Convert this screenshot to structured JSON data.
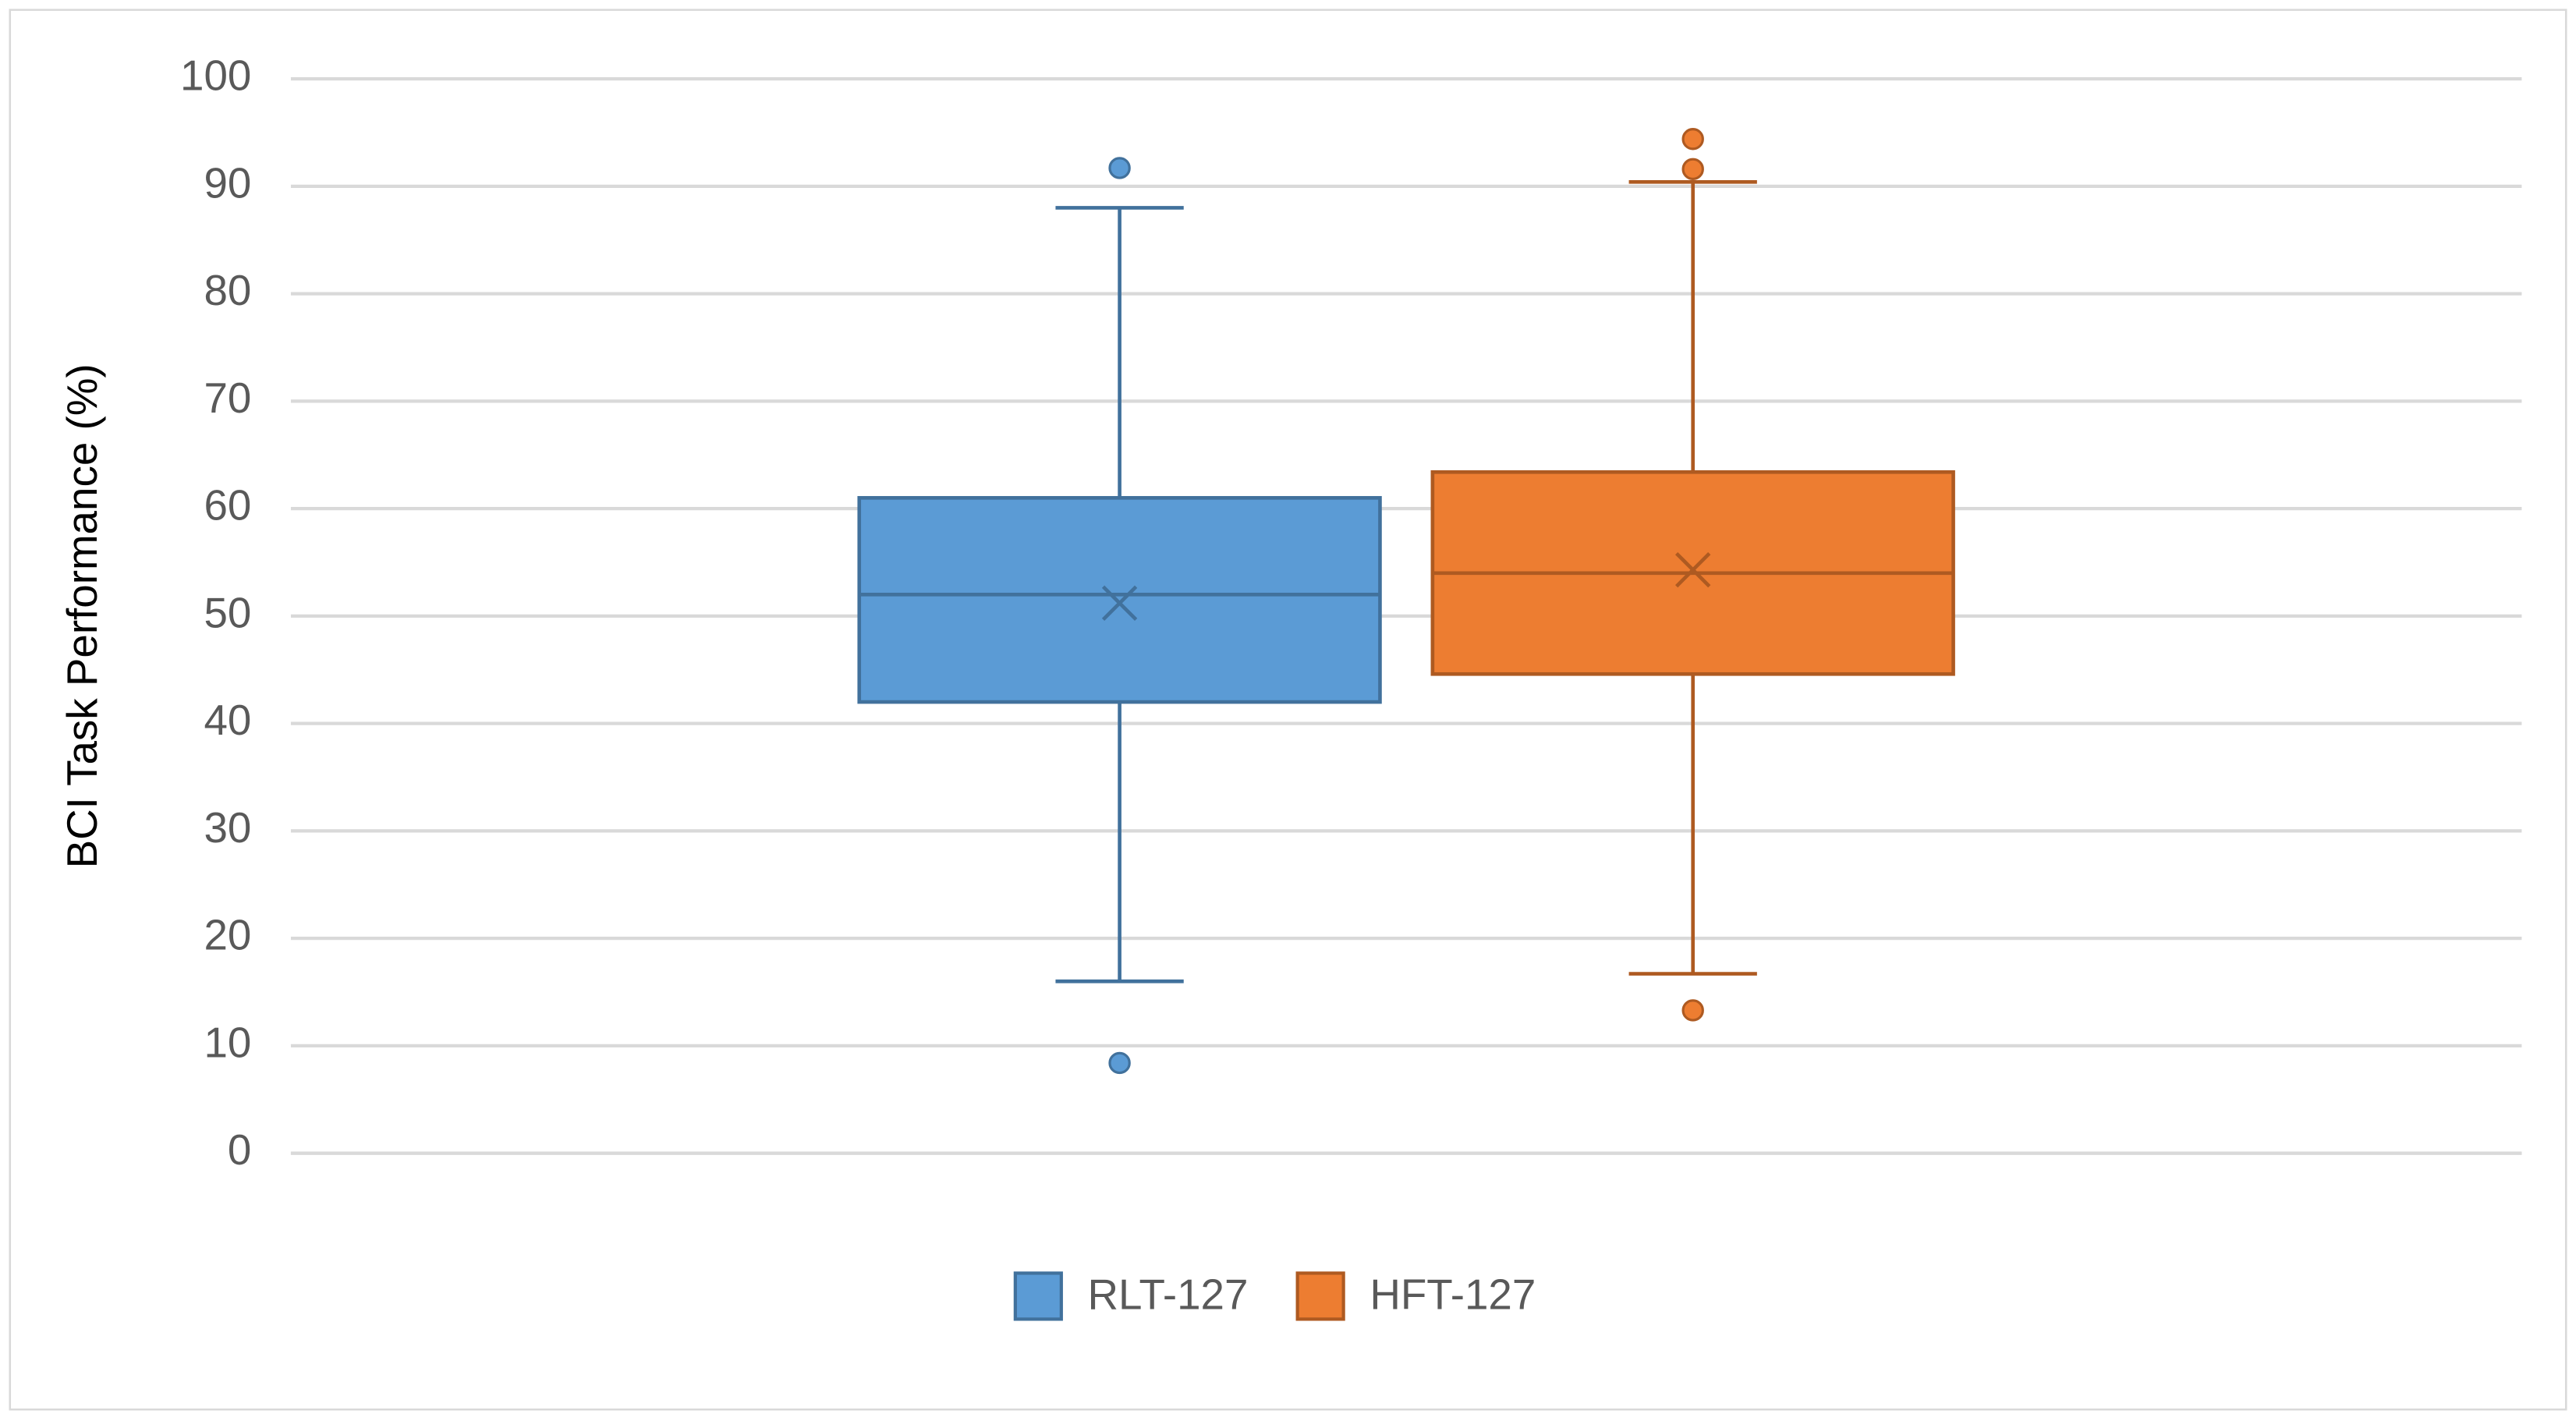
{
  "chart_data": {
    "type": "box",
    "ylabel": "BCI Task Performance (%)",
    "ylim": [
      0,
      100
    ],
    "yticks": [
      0,
      10,
      20,
      30,
      40,
      50,
      60,
      70,
      80,
      90,
      100
    ],
    "grid": true,
    "legend": "bottom",
    "series": [
      {
        "name": "RLT-127",
        "color": "#5b9bd5",
        "edge": "#41719c",
        "low": 16,
        "q1": 42,
        "median": 52,
        "q3": 61,
        "high": 88,
        "mean": 51.2,
        "outliers": [
          91.7,
          8.4
        ]
      },
      {
        "name": "HFT-127",
        "color": "#ed7d31",
        "edge": "#ae5a21",
        "low": 16.7,
        "q1": 44.6,
        "median": 54,
        "q3": 63.4,
        "high": 90.4,
        "mean": 54.3,
        "outliers": [
          94.4,
          91.6,
          13.3
        ]
      }
    ]
  }
}
